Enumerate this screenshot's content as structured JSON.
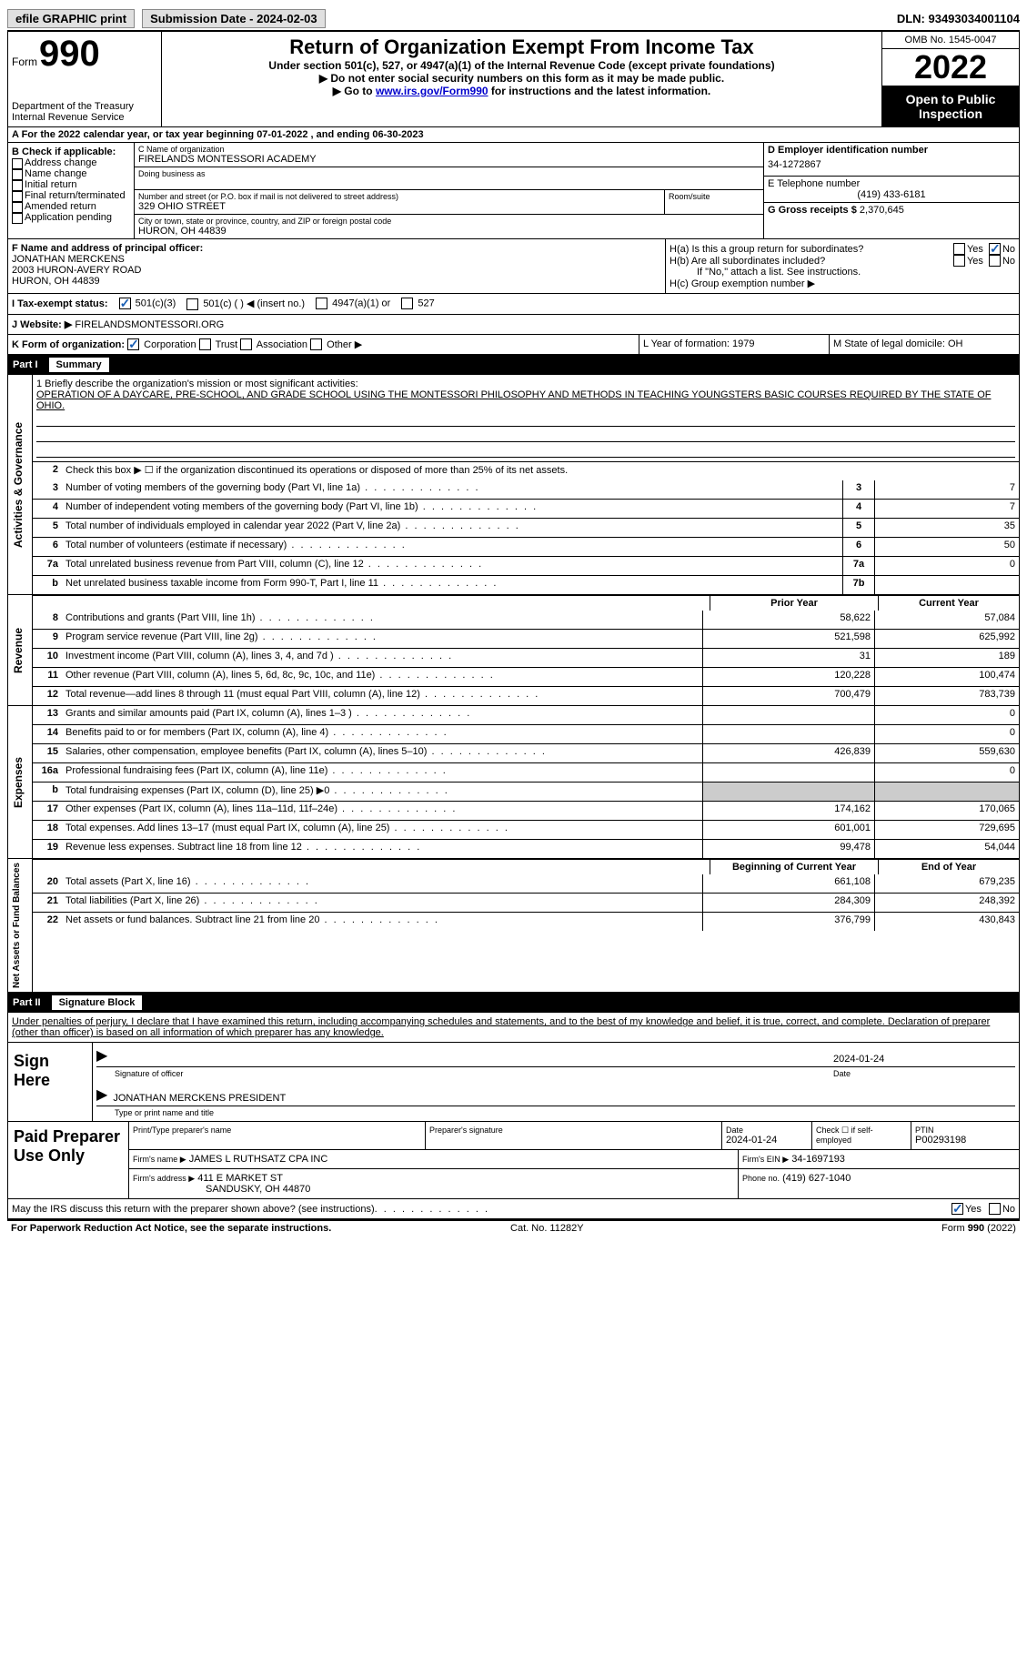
{
  "top": {
    "efile": "efile GRAPHIC print",
    "submission": "Submission Date - 2024-02-03",
    "dln": "DLN: 93493034001104"
  },
  "header": {
    "form_label": "Form",
    "form_number": "990",
    "dept": "Department of the Treasury\nInternal Revenue Service",
    "title": "Return of Organization Exempt From Income Tax",
    "subtitle": "Under section 501(c), 527, or 4947(a)(1) of the Internal Revenue Code (except private foundations)",
    "note1": "▶ Do not enter social security numbers on this form as it may be made public.",
    "note2_pre": "▶ Go to ",
    "note2_link": "www.irs.gov/Form990",
    "note2_post": " for instructions and the latest information.",
    "omb": "OMB No. 1545-0047",
    "year": "2022",
    "otp": "Open to Public Inspection"
  },
  "lineA": "A For the 2022 calendar year, or tax year beginning 07-01-2022   , and ending 06-30-2023",
  "sectionB": {
    "title": "B Check if applicable:",
    "items": [
      "Address change",
      "Name change",
      "Initial return",
      "Final return/terminated",
      "Amended return",
      "Application pending"
    ]
  },
  "sectionC": {
    "name_label": "C Name of organization",
    "name": "FIRELANDS MONTESSORI ACADEMY",
    "dba_label": "Doing business as",
    "addr_label": "Number and street (or P.O. box if mail is not delivered to street address)",
    "room_label": "Room/suite",
    "addr": "329 OHIO STREET",
    "city_label": "City or town, state or province, country, and ZIP or foreign postal code",
    "city": "HURON, OH  44839"
  },
  "sectionD": {
    "label": "D Employer identification number",
    "value": "34-1272867",
    "tel_label": "E Telephone number",
    "tel": "(419) 433-6181",
    "gross_label": "G Gross receipts $",
    "gross": "2,370,645"
  },
  "sectionF": {
    "label": "F Name and address of principal officer:",
    "name": "JONATHAN MERCKENS",
    "addr": "2003 HURON-AVERY ROAD",
    "city": "HURON, OH  44839"
  },
  "sectionH": {
    "ha": "H(a)  Is this a group return for subordinates?",
    "hb": "H(b)  Are all subordinates included?",
    "hb_note": "If \"No,\" attach a list. See instructions.",
    "hc": "H(c)  Group exemption number ▶"
  },
  "sectionI": {
    "label": "I   Tax-exempt status:",
    "opts": [
      "501(c)(3)",
      "501(c) (  ) ◀ (insert no.)",
      "4947(a)(1) or",
      "527"
    ]
  },
  "sectionJ": {
    "label": "J   Website: ▶",
    "value": "FIRELANDSMONTESSORI.ORG"
  },
  "sectionK": {
    "label": "K Form of organization:",
    "opts": [
      "Corporation",
      "Trust",
      "Association",
      "Other ▶"
    ],
    "l": "L Year of formation: 1979",
    "m": "M State of legal domicile: OH"
  },
  "part1": {
    "num": "Part I",
    "title": "Summary"
  },
  "mission": {
    "label": "1   Briefly describe the organization's mission or most significant activities:",
    "text": "OPERATION OF A DAYCARE, PRE-SCHOOL, AND GRADE SCHOOL USING THE MONTESSORI PHILOSOPHY AND METHODS IN TEACHING YOUNGSTERS BASIC COURSES REQUIRED BY THE STATE OF OHIO."
  },
  "line2": "Check this box ▶ ☐  if the organization discontinued its operations or disposed of more than 25% of its net assets.",
  "governance": [
    {
      "n": "3",
      "d": "Number of voting members of the governing body (Part VI, line 1a)",
      "b": "3",
      "v": "7"
    },
    {
      "n": "4",
      "d": "Number of independent voting members of the governing body (Part VI, line 1b)",
      "b": "4",
      "v": "7"
    },
    {
      "n": "5",
      "d": "Total number of individuals employed in calendar year 2022 (Part V, line 2a)",
      "b": "5",
      "v": "35"
    },
    {
      "n": "6",
      "d": "Total number of volunteers (estimate if necessary)",
      "b": "6",
      "v": "50"
    },
    {
      "n": "7a",
      "d": "Total unrelated business revenue from Part VIII, column (C), line 12",
      "b": "7a",
      "v": "0"
    },
    {
      "n": "b",
      "d": "Net unrelated business taxable income from Form 990-T, Part I, line 11",
      "b": "7b",
      "v": ""
    }
  ],
  "headers": {
    "prior": "Prior Year",
    "current": "Current Year",
    "begin": "Beginning of Current Year",
    "end": "End of Year"
  },
  "revenue": [
    {
      "n": "8",
      "d": "Contributions and grants (Part VIII, line 1h)",
      "p": "58,622",
      "c": "57,084"
    },
    {
      "n": "9",
      "d": "Program service revenue (Part VIII, line 2g)",
      "p": "521,598",
      "c": "625,992"
    },
    {
      "n": "10",
      "d": "Investment income (Part VIII, column (A), lines 3, 4, and 7d )",
      "p": "31",
      "c": "189"
    },
    {
      "n": "11",
      "d": "Other revenue (Part VIII, column (A), lines 5, 6d, 8c, 9c, 10c, and 11e)",
      "p": "120,228",
      "c": "100,474"
    },
    {
      "n": "12",
      "d": "Total revenue—add lines 8 through 11 (must equal Part VIII, column (A), line 12)",
      "p": "700,479",
      "c": "783,739"
    }
  ],
  "expenses": [
    {
      "n": "13",
      "d": "Grants and similar amounts paid (Part IX, column (A), lines 1–3 )",
      "p": "",
      "c": "0"
    },
    {
      "n": "14",
      "d": "Benefits paid to or for members (Part IX, column (A), line 4)",
      "p": "",
      "c": "0"
    },
    {
      "n": "15",
      "d": "Salaries, other compensation, employee benefits (Part IX, column (A), lines 5–10)",
      "p": "426,839",
      "c": "559,630"
    },
    {
      "n": "16a",
      "d": "Professional fundraising fees (Part IX, column (A), line 11e)",
      "p": "",
      "c": "0"
    },
    {
      "n": "b",
      "d": "Total fundraising expenses (Part IX, column (D), line 25) ▶0",
      "p": "shaded",
      "c": "shaded"
    },
    {
      "n": "17",
      "d": "Other expenses (Part IX, column (A), lines 11a–11d, 11f–24e)",
      "p": "174,162",
      "c": "170,065"
    },
    {
      "n": "18",
      "d": "Total expenses. Add lines 13–17 (must equal Part IX, column (A), line 25)",
      "p": "601,001",
      "c": "729,695"
    },
    {
      "n": "19",
      "d": "Revenue less expenses. Subtract line 18 from line 12",
      "p": "99,478",
      "c": "54,044"
    }
  ],
  "netassets": [
    {
      "n": "20",
      "d": "Total assets (Part X, line 16)",
      "p": "661,108",
      "c": "679,235"
    },
    {
      "n": "21",
      "d": "Total liabilities (Part X, line 26)",
      "p": "284,309",
      "c": "248,392"
    },
    {
      "n": "22",
      "d": "Net assets or fund balances. Subtract line 21 from line 20",
      "p": "376,799",
      "c": "430,843"
    }
  ],
  "part2": {
    "num": "Part II",
    "title": "Signature Block"
  },
  "penalties": "Under penalties of perjury, I declare that I have examined this return, including accompanying schedules and statements, and to the best of my knowledge and belief, it is true, correct, and complete. Declaration of preparer (other than officer) is based on all information of which preparer has any knowledge.",
  "sign": {
    "label": "Sign Here",
    "sig_date": "2024-01-24",
    "sig_label": "Signature of officer",
    "date_label": "Date",
    "name": "JONATHAN MERCKENS  PRESIDENT",
    "name_label": "Type or print name and title"
  },
  "paid": {
    "label": "Paid Preparer Use Only",
    "pname_label": "Print/Type preparer's name",
    "psig_label": "Preparer's signature",
    "pdate_label": "Date",
    "pdate": "2024-01-24",
    "check_label": "Check ☐ if self-employed",
    "ptin_label": "PTIN",
    "ptin": "P00293198",
    "firm_label": "Firm's name   ▶",
    "firm": "JAMES L RUTHSATZ CPA INC",
    "ein_label": "Firm's EIN ▶",
    "ein": "34-1697193",
    "addr_label": "Firm's address ▶",
    "addr": "411 E MARKET ST",
    "addr2": "SANDUSKY, OH  44870",
    "phone_label": "Phone no.",
    "phone": "(419) 627-1040"
  },
  "irs_discuss": "May the IRS discuss this return with the preparer shown above? (see instructions)",
  "footer": {
    "l": "For Paperwork Reduction Act Notice, see the separate instructions.",
    "m": "Cat. No. 11282Y",
    "r": "Form 990 (2022)"
  },
  "side_labels": {
    "gov": "Activities & Governance",
    "rev": "Revenue",
    "exp": "Expenses",
    "net": "Net Assets or Fund Balances"
  }
}
